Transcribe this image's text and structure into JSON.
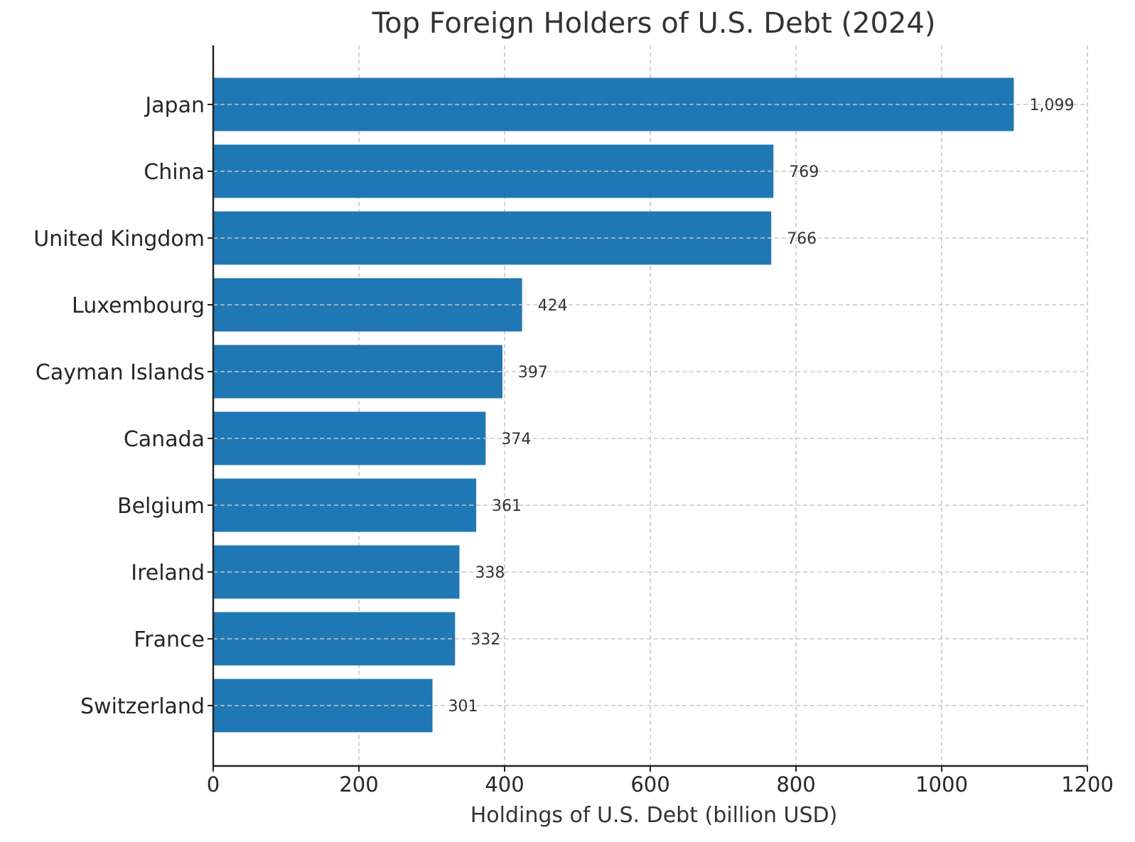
{
  "chart_data": {
    "type": "bar",
    "orientation": "horizontal",
    "title": "Top Foreign Holders of U.S. Debt (2024)",
    "xlabel": "Holdings of U.S. Debt (billion USD)",
    "ylabel": "",
    "categories": [
      "Japan",
      "China",
      "United Kingdom",
      "Luxembourg",
      "Cayman Islands",
      "Canada",
      "Belgium",
      "Ireland",
      "France",
      "Switzerland"
    ],
    "values": [
      1099,
      769,
      766,
      424,
      397,
      374,
      361,
      338,
      332,
      301
    ],
    "value_labels": [
      "1,099",
      "769",
      "766",
      "424",
      "397",
      "374",
      "361",
      "338",
      "332",
      "301"
    ],
    "xlim": [
      0,
      1200
    ],
    "xticks": [
      0,
      200,
      400,
      600,
      800,
      1000,
      1200
    ],
    "grid": true,
    "bar_color": "#1f77b4"
  }
}
